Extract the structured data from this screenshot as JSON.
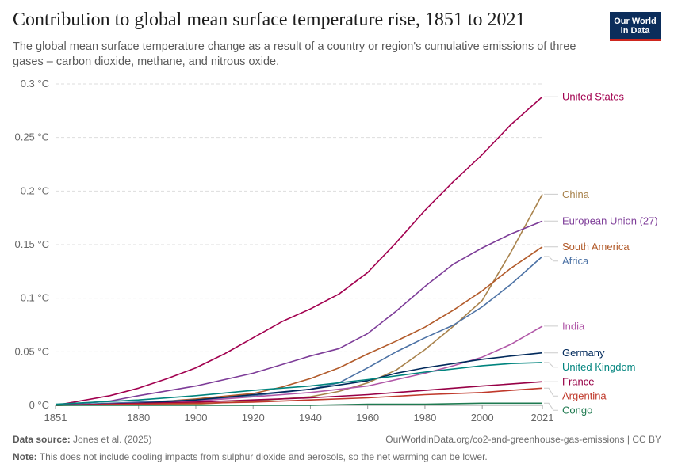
{
  "header": {
    "title": "Contribution to global mean surface temperature rise, 1851 to 2021",
    "subtitle": "The global mean surface temperature change as a result of a country or region's cumulative emissions of three gases – carbon dioxide, methane, and nitrous oxide.",
    "logo_line1": "Our World",
    "logo_line2": "in Data"
  },
  "footer": {
    "source_label": "Data source:",
    "source_text": "Jones et al. (2025)",
    "url": "OurWorldinData.org/co2-and-greenhouse-gas-emissions | CC BY",
    "note_label": "Note:",
    "note_text": "This does not include cooling impacts from sulphur dioxide and aerosols, so the net warming can be lower."
  },
  "chart_data": {
    "type": "line",
    "title": "Contribution to global mean surface temperature rise, 1851 to 2021",
    "xlim": [
      1851,
      2021
    ],
    "ylim": [
      0,
      0.3
    ],
    "x_ticks": [
      {
        "value": 1851,
        "label": "1851"
      },
      {
        "value": 1880,
        "label": "1880"
      },
      {
        "value": 1900,
        "label": "1900"
      },
      {
        "value": 1920,
        "label": "1920"
      },
      {
        "value": 1940,
        "label": "1940"
      },
      {
        "value": 1960,
        "label": "1960"
      },
      {
        "value": 1980,
        "label": "1980"
      },
      {
        "value": 2000,
        "label": "2000"
      },
      {
        "value": 2021,
        "label": "2021"
      }
    ],
    "y_ticks": [
      {
        "value": 0,
        "label": "0 °C"
      },
      {
        "value": 0.05,
        "label": "0.05 °C"
      },
      {
        "value": 0.1,
        "label": "0.1 °C"
      },
      {
        "value": 0.15,
        "label": "0.15 °C"
      },
      {
        "value": 0.2,
        "label": "0.2 °C"
      },
      {
        "value": 0.25,
        "label": "0.25 °C"
      },
      {
        "value": 0.3,
        "label": "0.3 °C"
      }
    ],
    "grid": "horizontal dashed",
    "legend": "right, labels at line ends",
    "series": [
      {
        "name": "United States",
        "color": "#a2004f",
        "points": [
          [
            1851,
            0
          ],
          [
            1870,
            0.009
          ],
          [
            1880,
            0.016
          ],
          [
            1890,
            0.025
          ],
          [
            1900,
            0.035
          ],
          [
            1910,
            0.048
          ],
          [
            1920,
            0.063
          ],
          [
            1930,
            0.078
          ],
          [
            1940,
            0.09
          ],
          [
            1950,
            0.104
          ],
          [
            1960,
            0.124
          ],
          [
            1970,
            0.152
          ],
          [
            1980,
            0.182
          ],
          [
            1990,
            0.209
          ],
          [
            2000,
            0.234
          ],
          [
            2010,
            0.262
          ],
          [
            2021,
            0.288
          ]
        ]
      },
      {
        "name": "China",
        "color": "#a9834d",
        "points": [
          [
            1851,
            0
          ],
          [
            1900,
            0.001
          ],
          [
            1920,
            0.004
          ],
          [
            1940,
            0.008
          ],
          [
            1950,
            0.013
          ],
          [
            1960,
            0.021
          ],
          [
            1970,
            0.033
          ],
          [
            1980,
            0.052
          ],
          [
            1990,
            0.074
          ],
          [
            2000,
            0.098
          ],
          [
            2010,
            0.143
          ],
          [
            2021,
            0.197
          ]
        ]
      },
      {
        "name": "European Union (27)",
        "color": "#7d3c98",
        "points": [
          [
            1851,
            0
          ],
          [
            1870,
            0.004
          ],
          [
            1880,
            0.009
          ],
          [
            1900,
            0.018
          ],
          [
            1920,
            0.03
          ],
          [
            1940,
            0.046
          ],
          [
            1950,
            0.053
          ],
          [
            1960,
            0.067
          ],
          [
            1970,
            0.088
          ],
          [
            1980,
            0.111
          ],
          [
            1990,
            0.132
          ],
          [
            2000,
            0.147
          ],
          [
            2010,
            0.16
          ],
          [
            2021,
            0.172
          ]
        ]
      },
      {
        "name": "South America",
        "color": "#b25b2b",
        "points": [
          [
            1851,
            0
          ],
          [
            1880,
            0.002
          ],
          [
            1900,
            0.006
          ],
          [
            1920,
            0.011
          ],
          [
            1930,
            0.017
          ],
          [
            1940,
            0.025
          ],
          [
            1950,
            0.035
          ],
          [
            1960,
            0.048
          ],
          [
            1970,
            0.06
          ],
          [
            1980,
            0.073
          ],
          [
            1990,
            0.089
          ],
          [
            2000,
            0.107
          ],
          [
            2010,
            0.128
          ],
          [
            2021,
            0.148
          ]
        ]
      },
      {
        "name": "Africa",
        "color": "#4c72a5",
        "points": [
          [
            1851,
            0
          ],
          [
            1880,
            0.003
          ],
          [
            1900,
            0.005
          ],
          [
            1920,
            0.009
          ],
          [
            1940,
            0.015
          ],
          [
            1950,
            0.021
          ],
          [
            1960,
            0.035
          ],
          [
            1970,
            0.05
          ],
          [
            1980,
            0.063
          ],
          [
            1990,
            0.075
          ],
          [
            2000,
            0.092
          ],
          [
            2010,
            0.113
          ],
          [
            2021,
            0.139
          ]
        ]
      },
      {
        "name": "India",
        "color": "#b158a8",
        "points": [
          [
            1851,
            0
          ],
          [
            1880,
            0.002
          ],
          [
            1900,
            0.004
          ],
          [
            1920,
            0.008
          ],
          [
            1940,
            0.012
          ],
          [
            1960,
            0.018
          ],
          [
            1980,
            0.03
          ],
          [
            1990,
            0.037
          ],
          [
            2000,
            0.045
          ],
          [
            2010,
            0.057
          ],
          [
            2021,
            0.074
          ]
        ]
      },
      {
        "name": "Germany",
        "color": "#00295b",
        "points": [
          [
            1851,
            0
          ],
          [
            1880,
            0.002
          ],
          [
            1900,
            0.005
          ],
          [
            1920,
            0.01
          ],
          [
            1940,
            0.015
          ],
          [
            1960,
            0.023
          ],
          [
            1970,
            0.03
          ],
          [
            1980,
            0.035
          ],
          [
            1990,
            0.039
          ],
          [
            2000,
            0.043
          ],
          [
            2010,
            0.046
          ],
          [
            2021,
            0.049
          ]
        ]
      },
      {
        "name": "United Kingdom",
        "color": "#00847e",
        "points": [
          [
            1851,
            0.001
          ],
          [
            1880,
            0.005
          ],
          [
            1900,
            0.009
          ],
          [
            1920,
            0.014
          ],
          [
            1940,
            0.018
          ],
          [
            1960,
            0.024
          ],
          [
            1980,
            0.031
          ],
          [
            2000,
            0.037
          ],
          [
            2010,
            0.039
          ],
          [
            2021,
            0.04
          ]
        ]
      },
      {
        "name": "France",
        "color": "#970046",
        "points": [
          [
            1851,
            0
          ],
          [
            1900,
            0.003
          ],
          [
            1920,
            0.005
          ],
          [
            1940,
            0.007
          ],
          [
            1960,
            0.01
          ],
          [
            1980,
            0.014
          ],
          [
            2000,
            0.018
          ],
          [
            2021,
            0.022
          ]
        ]
      },
      {
        "name": "Argentina",
        "color": "#c0392b",
        "points": [
          [
            1851,
            0
          ],
          [
            1900,
            0.002
          ],
          [
            1920,
            0.003
          ],
          [
            1940,
            0.005
          ],
          [
            1960,
            0.007
          ],
          [
            1980,
            0.01
          ],
          [
            2000,
            0.012
          ],
          [
            2010,
            0.014
          ],
          [
            2021,
            0.016
          ]
        ]
      },
      {
        "name": "Congo",
        "color": "#1f7a50",
        "points": [
          [
            1851,
            0
          ],
          [
            1940,
            0
          ],
          [
            1960,
            0.001
          ],
          [
            1980,
            0.001
          ],
          [
            2000,
            0.002
          ],
          [
            2021,
            0.002
          ]
        ]
      }
    ]
  }
}
